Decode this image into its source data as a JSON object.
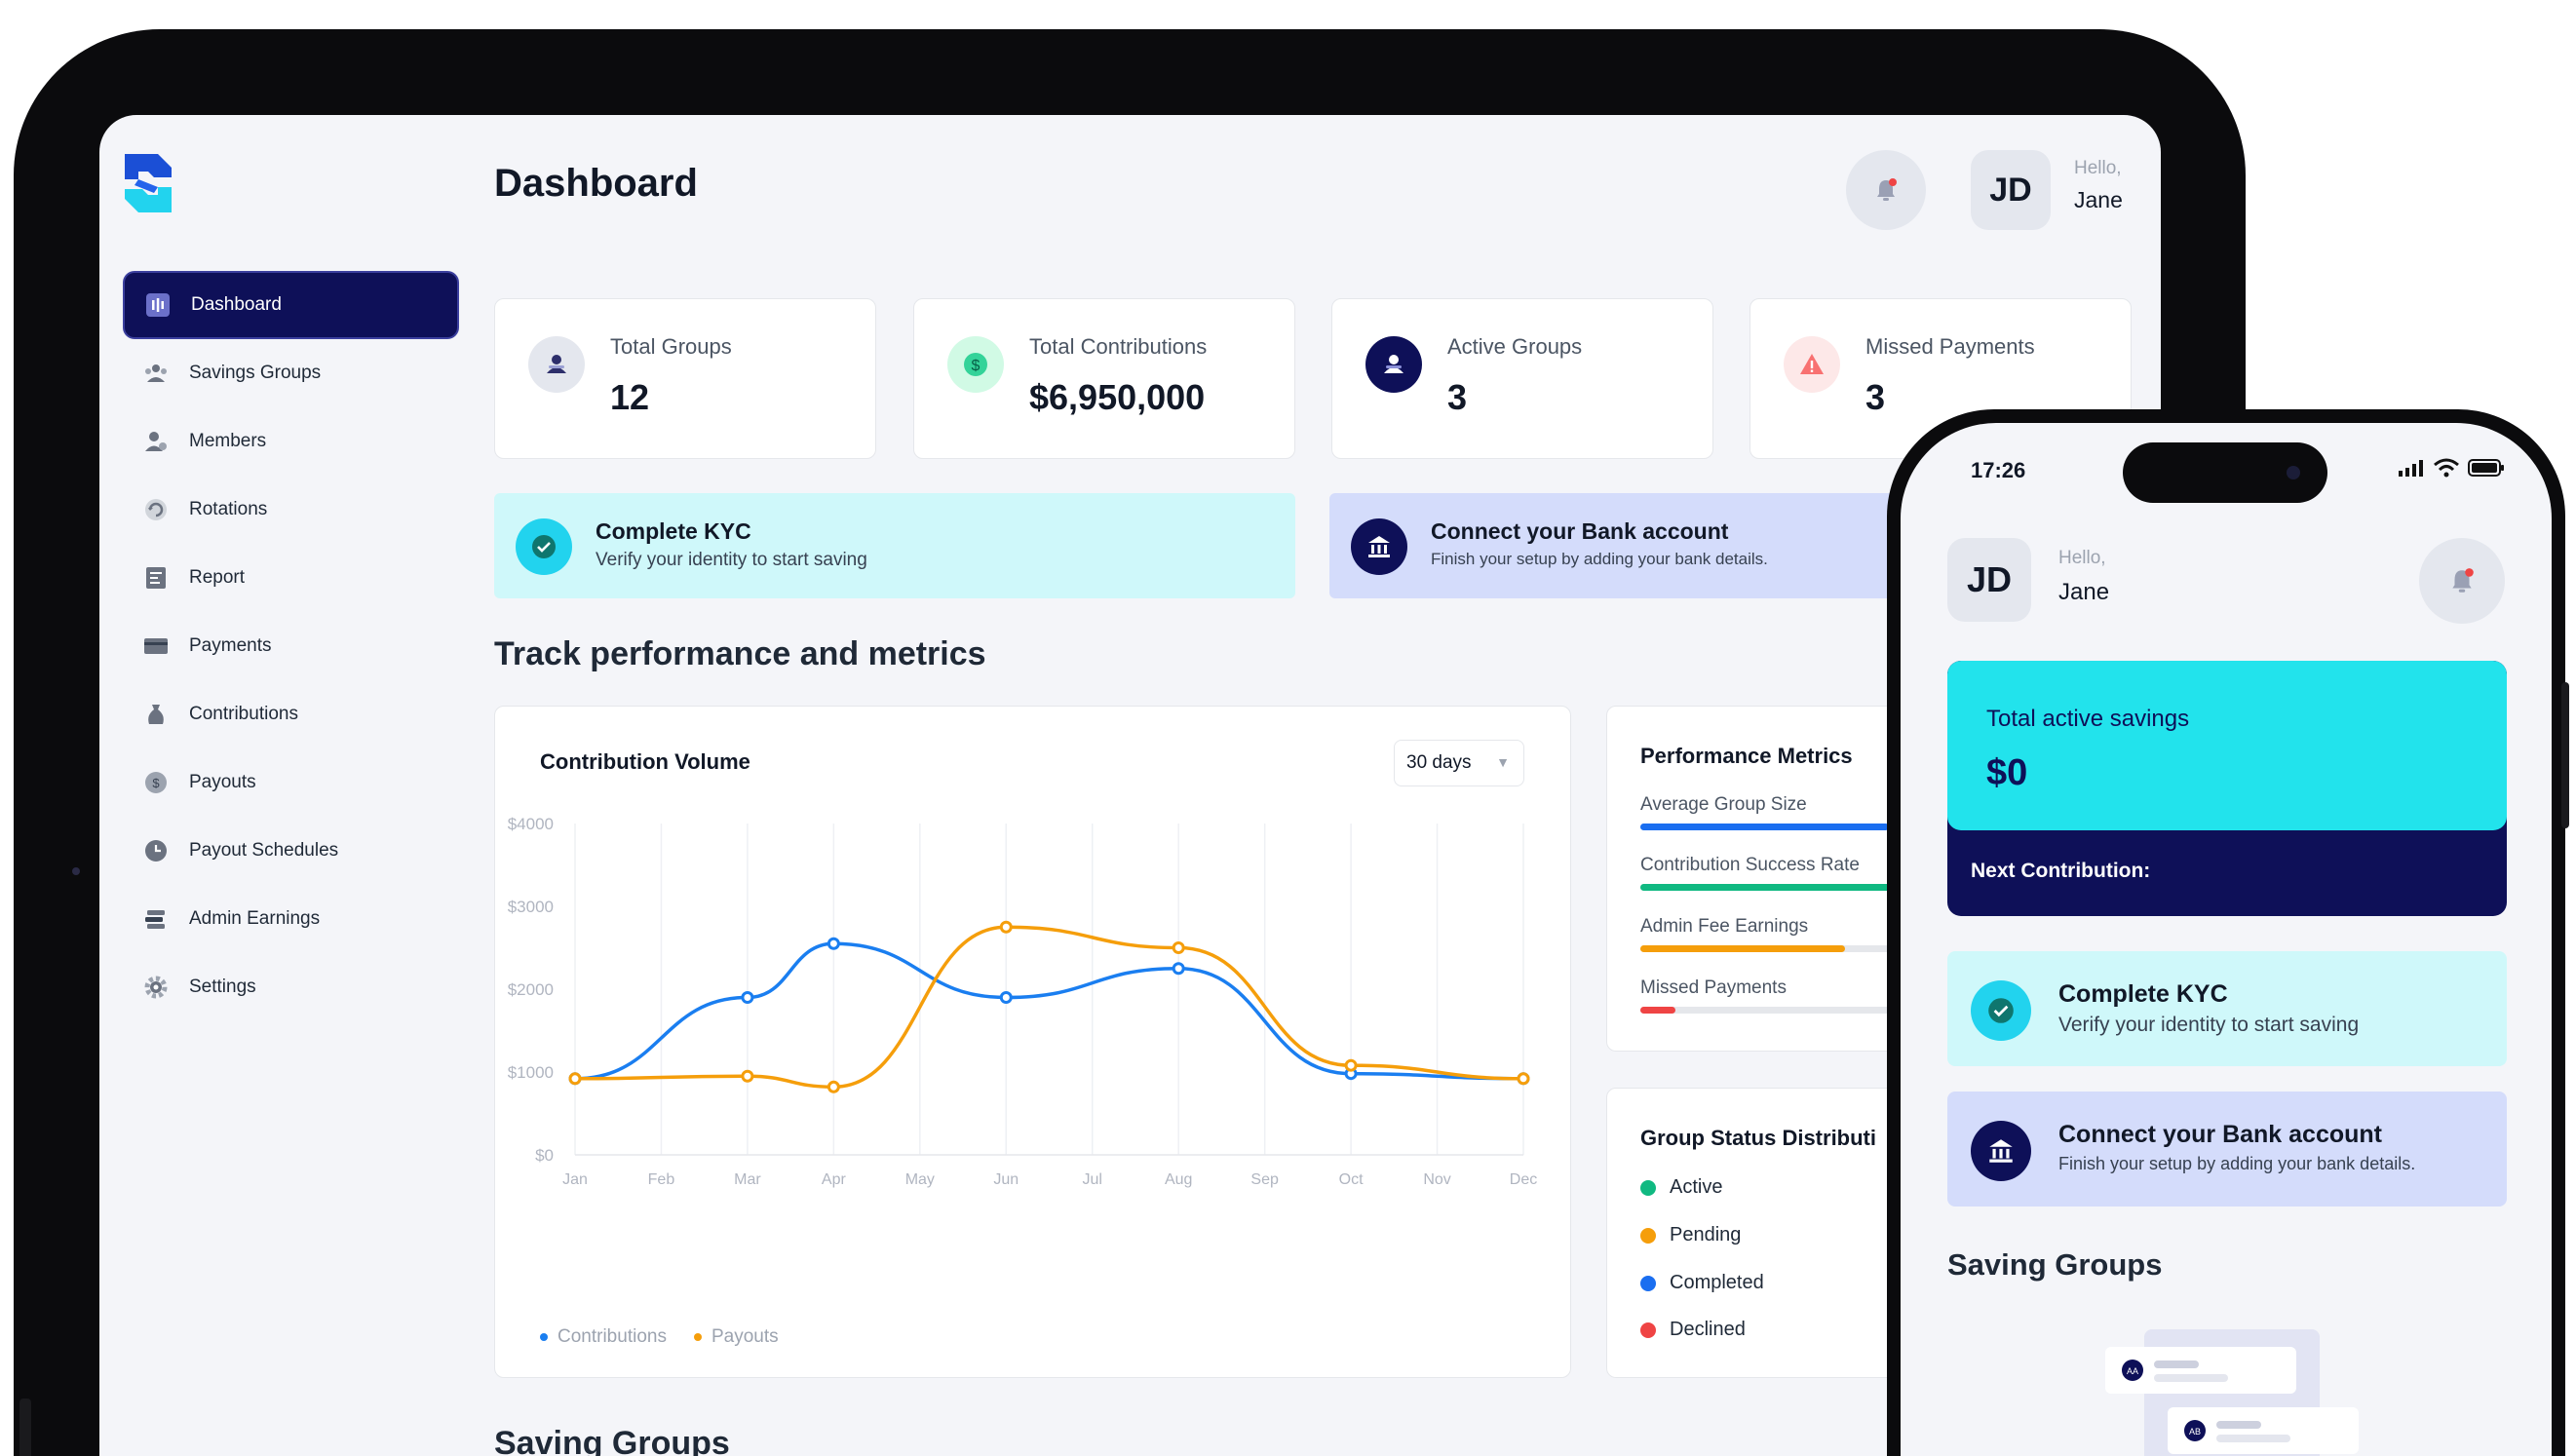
{
  "app": {
    "page_title": "Dashboard",
    "user_initials": "JD",
    "greeting": "Hello,",
    "user_name": "Jane"
  },
  "sidebar": {
    "items": [
      {
        "label": "Dashboard",
        "icon": "dashboard-icon",
        "active": true
      },
      {
        "label": "Savings Groups",
        "icon": "group-icon"
      },
      {
        "label": "Members",
        "icon": "user-icon"
      },
      {
        "label": "Rotations",
        "icon": "rotate-icon"
      },
      {
        "label": "Report",
        "icon": "report-icon"
      },
      {
        "label": "Payments",
        "icon": "card-icon"
      },
      {
        "label": "Contributions",
        "icon": "money-bag-icon"
      },
      {
        "label": "Payouts",
        "icon": "dollar-coin-icon"
      },
      {
        "label": "Payout Schedules",
        "icon": "clock-icon"
      },
      {
        "label": "Admin Earnings",
        "icon": "stack-icon"
      },
      {
        "label": "Settings",
        "icon": "gear-icon"
      }
    ]
  },
  "stats": [
    {
      "label": "Total Groups",
      "value": "12",
      "icon": "group-icon",
      "color": "#e4e7ee"
    },
    {
      "label": "Total Contributions",
      "value": "$6,950,000",
      "icon": "dollar-coin-icon",
      "color": "#d1fae5"
    },
    {
      "label": "Active Groups",
      "value": "3",
      "icon": "group-icon",
      "color": "#0e1058"
    },
    {
      "label": "Missed Payments",
      "value": "3",
      "icon": "warning-icon",
      "color": "#fde8e8"
    }
  ],
  "banners": {
    "kyc": {
      "title": "Complete KYC",
      "subtitle": "Verify your identity to start saving"
    },
    "bank": {
      "title": "Connect your Bank account",
      "subtitle": "Finish your setup by adding your bank details."
    }
  },
  "section_title": "Track performance and metrics",
  "chart": {
    "range_label": "30 days"
  },
  "chart_data": {
    "type": "line",
    "title": "Contribution Volume",
    "categories": [
      "Jan",
      "Feb",
      "Mar",
      "Apr",
      "May",
      "Jun",
      "Jul",
      "Aug",
      "Sep",
      "Oct",
      "Nov",
      "Dec"
    ],
    "y_ticks": [
      "$0",
      "$1000",
      "$2000",
      "$3000",
      "$4000"
    ],
    "ylim": [
      0,
      4000
    ],
    "grid": true,
    "legend_position": "bottom-left",
    "series": [
      {
        "name": "Contributions",
        "color": "#1a7ef0",
        "x": [
          "Jan",
          "Mar",
          "Apr",
          "Jun",
          "Aug",
          "Oct",
          "Dec"
        ],
        "values": [
          920,
          1900,
          2550,
          1900,
          2250,
          980,
          920
        ]
      },
      {
        "name": "Payouts",
        "color": "#f59e0b",
        "x": [
          "Jan",
          "Mar",
          "Apr",
          "Jun",
          "Aug",
          "Oct",
          "Dec"
        ],
        "values": [
          920,
          950,
          820,
          2750,
          2500,
          1080,
          920
        ]
      }
    ]
  },
  "metrics": {
    "title": "Performance Metrics",
    "items": [
      {
        "label": "Average Group Size",
        "fraction": 0.85,
        "color": "#1a6ef0"
      },
      {
        "label": "Contribution Success Rate",
        "fraction": 0.9,
        "color": "#10b981"
      },
      {
        "label": "Admin Fee Earnings",
        "fraction": 0.7,
        "color": "#f59e0b"
      },
      {
        "label": "Missed Payments",
        "fraction": 0.12,
        "color": "#ef4444"
      }
    ]
  },
  "status": {
    "title": "Group Status Distributi",
    "items": [
      {
        "label": "Active",
        "color": "#10b981"
      },
      {
        "label": "Pending",
        "color": "#f59e0b"
      },
      {
        "label": "Completed",
        "color": "#1a6ef0"
      },
      {
        "label": "Declined",
        "color": "#ef4444"
      }
    ]
  },
  "section_title_2": "Saving Groups",
  "phone": {
    "time": "17:26",
    "user_initials": "JD",
    "greeting": "Hello,",
    "user_name": "Jane",
    "savings_label": "Total active savings",
    "savings_value": "$0",
    "next_label": "Next Contribution:",
    "kyc_title": "Complete KYC",
    "kyc_subtitle": "Verify your identity to start saving",
    "bank_title": "Connect your Bank account",
    "bank_subtitle": "Finish your setup by adding your bank details.",
    "section_title": "Saving Groups",
    "illus_badges": [
      "AA",
      "AB"
    ]
  }
}
